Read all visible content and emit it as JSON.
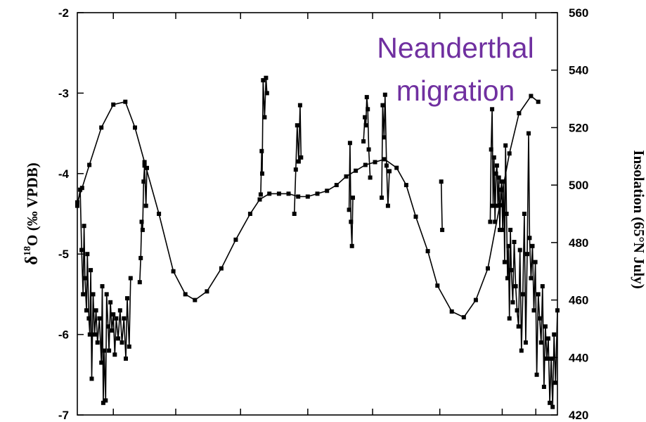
{
  "chart_data": {
    "type": "line",
    "title": "",
    "annotation": [
      "Neanderthal",
      "migration"
    ],
    "annotation_color": "#7030a0",
    "y_left": {
      "label_main": "δ",
      "label_sup": "18",
      "label_rest": "O (‰ VPDB)",
      "lim": [
        -7,
        -2
      ],
      "ticks": [
        -7,
        -6,
        -5,
        -4,
        -3,
        -2
      ],
      "tick_labels": [
        "-7",
        "-6",
        "-5",
        "-4",
        "-3",
        "-2"
      ]
    },
    "y_right": {
      "label": "Insolation (65°N July)",
      "lim": [
        420,
        560
      ],
      "ticks": [
        420,
        440,
        460,
        480,
        500,
        520,
        540,
        560
      ],
      "tick_labels": [
        "420",
        "440",
        "460",
        "480",
        "500",
        "520",
        "540",
        "560"
      ]
    },
    "x": {
      "lim": [
        0,
        100
      ],
      "tick_positions": [
        7.5,
        20.5,
        34,
        48,
        61.5,
        75.5,
        88.5,
        95.5
      ]
    },
    "grid": false,
    "legend": "none",
    "series": [
      {
        "axis": "right",
        "style": "line-with-markers",
        "points": [
          [
            0,
            494
          ],
          [
            1,
            499
          ],
          [
            2.5,
            507
          ],
          [
            5,
            520
          ],
          [
            7.5,
            528
          ],
          [
            10,
            529
          ],
          [
            12,
            520
          ],
          [
            14,
            508
          ],
          [
            17,
            490
          ],
          [
            20,
            470
          ],
          [
            22.5,
            462
          ],
          [
            24.5,
            460
          ],
          [
            27,
            463
          ],
          [
            30,
            471
          ],
          [
            33,
            481
          ],
          [
            36,
            490
          ],
          [
            38,
            495
          ],
          [
            40,
            497
          ],
          [
            42,
            497
          ],
          [
            44,
            497
          ],
          [
            46,
            496
          ],
          [
            48,
            496
          ],
          [
            50,
            497
          ],
          [
            52,
            498
          ],
          [
            54,
            500
          ],
          [
            56,
            503
          ],
          [
            58,
            505
          ],
          [
            60,
            507
          ],
          [
            62,
            508
          ],
          [
            64,
            509
          ],
          [
            66.5,
            506
          ],
          [
            68.5,
            500
          ],
          [
            70.5,
            489
          ],
          [
            73,
            477
          ],
          [
            75,
            465
          ],
          [
            78,
            456
          ],
          [
            80.5,
            454
          ],
          [
            83,
            460
          ],
          [
            85.5,
            471
          ],
          [
            88,
            493
          ],
          [
            90,
            511
          ],
          [
            92,
            525
          ],
          [
            94.5,
            531
          ],
          [
            96,
            529
          ]
        ]
      },
      {
        "axis": "left",
        "style": "line-with-markers",
        "segments": [
          [
            [
              0,
              -4.4
            ],
            [
              0.6,
              -4.2
            ],
            [
              0.9,
              -4.95
            ],
            [
              1.2,
              -5.5
            ],
            [
              1.4,
              -4.65
            ],
            [
              1.6,
              -5.3
            ],
            [
              1.9,
              -5.7
            ],
            [
              2.1,
              -5.0
            ],
            [
              2.4,
              -5.8
            ],
            [
              2.6,
              -6.0
            ],
            [
              2.8,
              -5.2
            ],
            [
              3.0,
              -6.55
            ],
            [
              3.3,
              -5.5
            ],
            [
              3.6,
              -6.0
            ],
            [
              3.9,
              -5.7
            ],
            [
              4.2,
              -6.1
            ],
            [
              4.6,
              -5.8
            ],
            [
              5.0,
              -6.35
            ],
            [
              5.2,
              -5.4
            ],
            [
              5.4,
              -6.85
            ],
            [
              5.6,
              -6.2
            ],
            [
              5.9,
              -6.82
            ],
            [
              6.1,
              -5.5
            ],
            [
              6.4,
              -5.9
            ],
            [
              6.6,
              -6.2
            ],
            [
              6.9,
              -5.6
            ],
            [
              7.2,
              -5.95
            ],
            [
              7.5,
              -5.75
            ],
            [
              7.8,
              -6.25
            ],
            [
              8.1,
              -5.8
            ],
            [
              8.5,
              -6.05
            ],
            [
              8.9,
              -5.7
            ],
            [
              9.3,
              -6.1
            ],
            [
              9.7,
              -5.8
            ],
            [
              10.1,
              -6.3
            ],
            [
              10.4,
              -5.55
            ],
            [
              10.8,
              -6.15
            ],
            [
              11.1,
              -5.3
            ]
          ],
          [
            [
              13.0,
              -5.35
            ],
            [
              13.2,
              -5.05
            ],
            [
              13.4,
              -4.6
            ],
            [
              13.6,
              -4.7
            ],
            [
              13.8,
              -4.1
            ],
            [
              14.0,
              -3.9
            ],
            [
              14.3,
              -4.4
            ],
            [
              14.5,
              -3.93
            ]
          ],
          [
            [
              38.2,
              -4.26
            ],
            [
              38.4,
              -3.72
            ],
            [
              38.5,
              -4.0
            ],
            [
              38.7,
              -2.84
            ],
            [
              39.0,
              -3.3
            ],
            [
              39.3,
              -2.81
            ],
            [
              39.5,
              -3.0
            ]
          ],
          [
            [
              45.2,
              -4.5
            ],
            [
              45.5,
              -3.95
            ],
            [
              45.8,
              -3.4
            ],
            [
              46.1,
              -3.85
            ],
            [
              46.4,
              -3.15
            ],
            [
              46.6,
              -3.8
            ]
          ],
          [
            [
              56.6,
              -4.45
            ],
            [
              56.8,
              -3.62
            ],
            [
              57.0,
              -4.6
            ],
            [
              57.2,
              -4.9
            ],
            [
              57.4,
              -4.3
            ]
          ],
          [
            [
              59.6,
              -3.6
            ],
            [
              59.9,
              -3.3
            ],
            [
              60.1,
              -3.4
            ],
            [
              60.3,
              -3.05
            ],
            [
              60.5,
              -3.2
            ],
            [
              60.7,
              -3.7
            ],
            [
              61.0,
              -4.05
            ]
          ],
          [
            [
              63.4,
              -4.3
            ],
            [
              63.6,
              -3.15
            ],
            [
              63.9,
              -3.55
            ],
            [
              64.1,
              -3.02
            ],
            [
              64.4,
              -3.9
            ],
            [
              64.7,
              -4.4
            ],
            [
              65.0,
              -3.97
            ]
          ],
          [
            [
              75.8,
              -4.1
            ],
            [
              76.0,
              -4.7
            ]
          ],
          [
            [
              86.0,
              -4.6
            ],
            [
              86.2,
              -3.7
            ],
            [
              86.4,
              -3.2
            ],
            [
              86.6,
              -4.4
            ],
            [
              86.8,
              -3.8
            ],
            [
              87.0,
              -4.6
            ],
            [
              87.2,
              -4.0
            ],
            [
              87.4,
              -3.9
            ],
            [
              87.6,
              -4.4
            ],
            [
              87.8,
              -4.05
            ],
            [
              88.0,
              -4.7
            ],
            [
              88.2,
              -4.2
            ],
            [
              88.4,
              -4.1
            ],
            [
              88.6,
              -4.7
            ],
            [
              88.8,
              -4.1
            ],
            [
              89.0,
              -5.1
            ],
            [
              89.2,
              -3.65
            ],
            [
              89.4,
              -4.5
            ],
            [
              89.6,
              -5.3
            ],
            [
              89.8,
              -4.9
            ],
            [
              90.0,
              -5.8
            ],
            [
              90.2,
              -4.7
            ],
            [
              90.4,
              -5.2
            ],
            [
              90.7,
              -5.6
            ],
            [
              91.0,
              -4.85
            ],
            [
              91.3,
              -5.4
            ],
            [
              91.6,
              -5.7
            ],
            [
              91.9,
              -5.9
            ],
            [
              92.2,
              -4.95
            ],
            [
              92.5,
              -6.2
            ],
            [
              92.8,
              -5.5
            ],
            [
              93.1,
              -4.5
            ],
            [
              93.4,
              -6.1
            ],
            [
              93.7,
              -5.0
            ],
            [
              94.0,
              -3.5
            ],
            [
              94.2,
              -4.8
            ],
            [
              94.5,
              -5.3
            ],
            [
              94.8,
              -4.9
            ],
            [
              95.1,
              -5.7
            ],
            [
              95.4,
              -5.1
            ],
            [
              95.7,
              -6.5
            ],
            [
              96.0,
              -5.5
            ],
            [
              96.3,
              -5.8
            ],
            [
              96.6,
              -6.1
            ],
            [
              96.9,
              -5.4
            ],
            [
              97.2,
              -6.65
            ],
            [
              97.5,
              -5.9
            ],
            [
              97.8,
              -6.3
            ],
            [
              98.1,
              -6.05
            ],
            [
              98.4,
              -6.85
            ],
            [
              98.7,
              -6.3
            ],
            [
              99.0,
              -6.9
            ],
            [
              99.3,
              -6.0
            ],
            [
              99.6,
              -6.6
            ],
            [
              100,
              -5.7
            ]
          ]
        ]
      }
    ]
  }
}
